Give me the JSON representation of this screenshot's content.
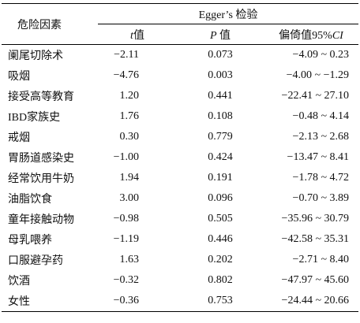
{
  "table": {
    "header": {
      "factor": "危险因素",
      "group": "Egger’s 检验",
      "columns": [
        [
          {
            "text": "t",
            "italic": true
          },
          {
            "text": "值"
          }
        ],
        [
          {
            "text": "P",
            "italic": true
          },
          {
            "text": " 值"
          }
        ],
        [
          {
            "text": "偏倚值95%"
          },
          {
            "text": "CI",
            "italic": true
          }
        ]
      ]
    },
    "rows": [
      [
        "阑尾切除术",
        "−2.11",
        "0.073",
        "−4.09 ~ 0.23"
      ],
      [
        "吸烟",
        "−4.76",
        "0.003",
        "−4.00 ~ −1.29"
      ],
      [
        "接受高等教育",
        "1.20",
        "0.441",
        "−22.41 ~ 27.10"
      ],
      [
        "IBD家族史",
        "1.76",
        "0.108",
        "−0.48 ~ 4.14"
      ],
      [
        "戒烟",
        "0.30",
        "0.779",
        "−2.13 ~ 2.68"
      ],
      [
        "胃肠道感染史",
        "−1.00",
        "0.424",
        "−13.47 ~ 8.41"
      ],
      [
        "经常饮用牛奶",
        "1.94",
        "0.191",
        "−1.78 ~ 4.72"
      ],
      [
        "油脂饮食",
        "3.00",
        "0.096",
        "−0.70 ~ 3.89"
      ],
      [
        "童年接触动物",
        "−0.98",
        "0.505",
        "−35.96 ~ 30.79"
      ],
      [
        "母乳喂养",
        "−1.19",
        "0.446",
        "−42.58 ~ 35.31"
      ],
      [
        "口服避孕药",
        "1.63",
        "0.202",
        "−2.71 ~ 8.40"
      ],
      [
        "饮酒",
        "−0.32",
        "0.802",
        "−47.97 ~ 45.60"
      ],
      [
        "女性",
        "−0.36",
        "0.753",
        "−24.44 ~ 20.66"
      ]
    ]
  }
}
